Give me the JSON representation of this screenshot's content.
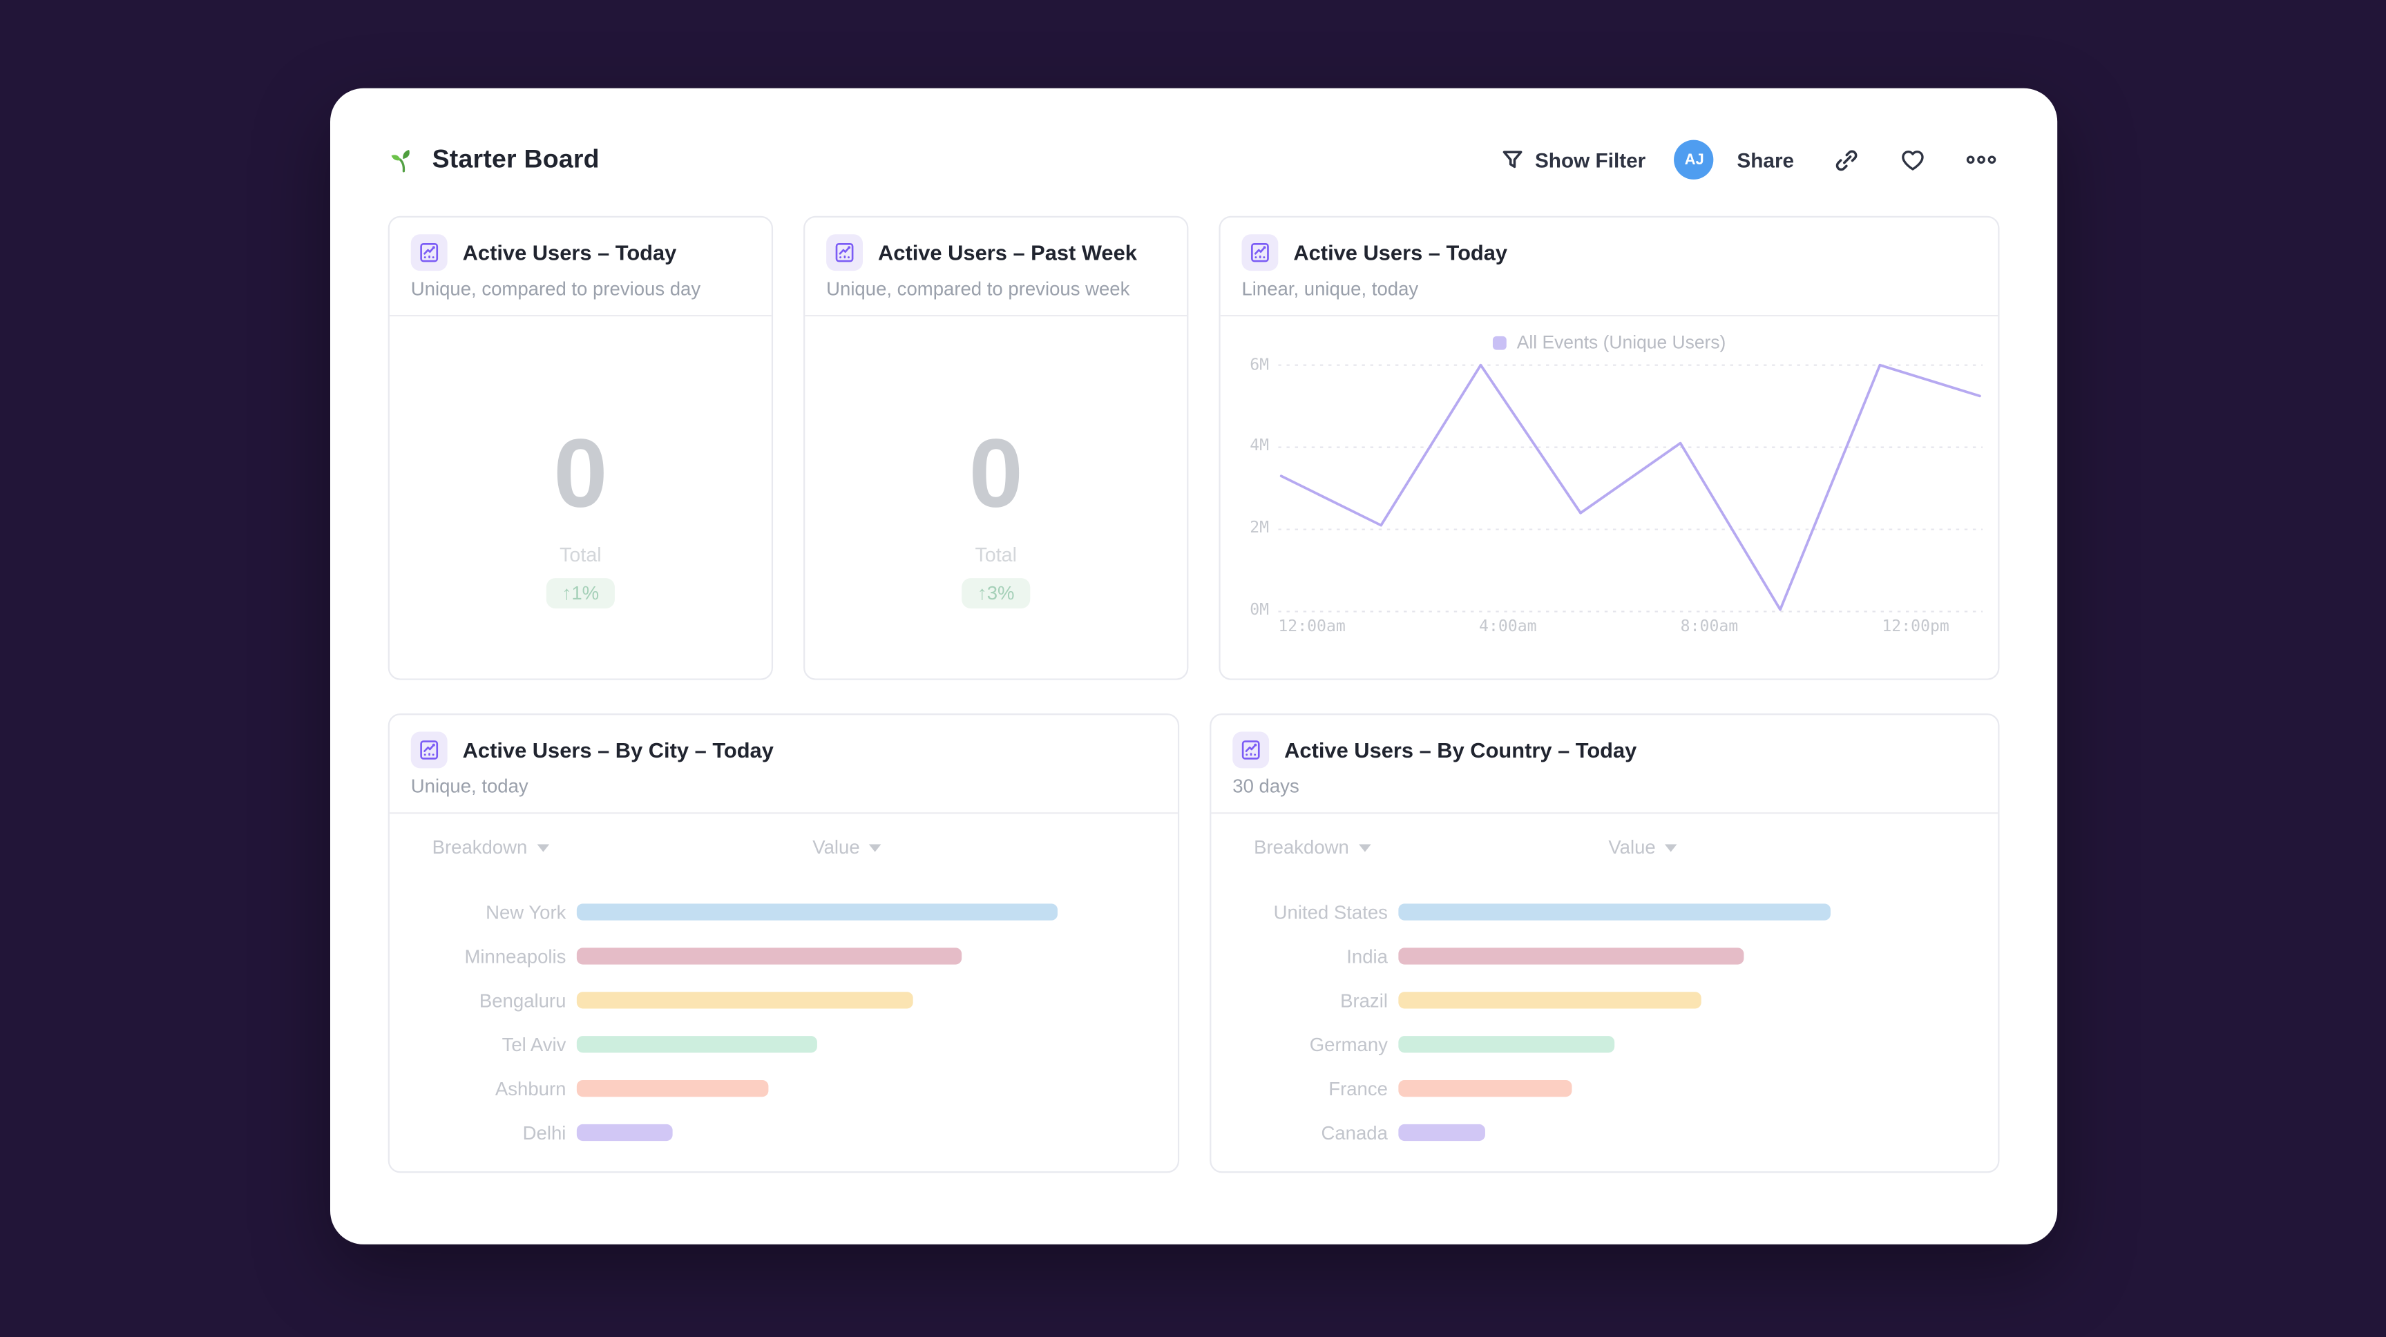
{
  "colors": {
    "page_background": "#221538",
    "card_background": "#ffffff",
    "avatar_blue": "#4f9df0",
    "accent_purple": "#7b5cf5",
    "line_series": "#b6a9f1",
    "legend_swatch": "#c9c0f5",
    "badge_bg": "#edf6ef",
    "badge_text": "#a5d0b8",
    "bar_palette": [
      "#c3def2",
      "#e5bcc7",
      "#fbe4b2",
      "#cdeede",
      "#fccfc2",
      "#d1c7f5"
    ]
  },
  "icons": {
    "board": "seedling",
    "filter": "funnel",
    "panel": "line-chart-frame",
    "link": "chain-link",
    "favorite": "heart-outline",
    "more": "ellipsis-three-dots"
  },
  "header": {
    "title": "Starter Board",
    "show_filter_label": "Show Filter",
    "avatar_initials": "AJ",
    "share_label": "Share"
  },
  "panels": {
    "kpi_today": {
      "title": "Active Users – Today",
      "subtitle": "Unique, compared to previous day",
      "value": "0",
      "value_label": "Total",
      "delta": "↑1%"
    },
    "kpi_week": {
      "title": "Active Users – Past Week",
      "subtitle": "Unique, compared to previous week",
      "value": "0",
      "value_label": "Total",
      "delta": "↑3%"
    },
    "line": {
      "title": "Active Users – Today",
      "subtitle": "Linear, unique, today",
      "legend": "All Events (Unique Users)",
      "yticks": [
        "6M",
        "4M",
        "2M",
        "0M"
      ],
      "xticks": [
        "12:00am",
        "4:00am",
        "8:00am",
        "12:00pm"
      ]
    },
    "city": {
      "title": "Active Users – By City – Today",
      "subtitle": "Unique, today",
      "columns": [
        "Breakdown",
        "Value"
      ],
      "rows": [
        {
          "label": "New York",
          "pct": 100,
          "color": "#c3def2"
        },
        {
          "label": "Minneapolis",
          "pct": 80,
          "color": "#e5bcc7"
        },
        {
          "label": "Bengaluru",
          "pct": 70,
          "color": "#fbe4b2"
        },
        {
          "label": "Tel Aviv",
          "pct": 50,
          "color": "#cdeede"
        },
        {
          "label": "Ashburn",
          "pct": 40,
          "color": "#fccfc2"
        },
        {
          "label": "Delhi",
          "pct": 20,
          "color": "#d1c7f5"
        }
      ]
    },
    "country": {
      "title": "Active Users – By Country – Today",
      "subtitle": "30 days",
      "columns": [
        "Breakdown",
        "Value"
      ],
      "rows": [
        {
          "label": "United States",
          "pct": 100,
          "color": "#c3def2"
        },
        {
          "label": "India",
          "pct": 80,
          "color": "#e5bcc7"
        },
        {
          "label": "Brazil",
          "pct": 70,
          "color": "#fbe4b2"
        },
        {
          "label": "Germany",
          "pct": 50,
          "color": "#cdeede"
        },
        {
          "label": "France",
          "pct": 40,
          "color": "#fccfc2"
        },
        {
          "label": "Canada",
          "pct": 20,
          "color": "#d1c7f5"
        }
      ]
    }
  },
  "chart_data": [
    {
      "type": "line",
      "title": "Active Users – Today",
      "subtitle": "Linear, unique, today",
      "series": [
        {
          "name": "All Events (Unique Users)",
          "x": [
            "12:00am",
            "2:00am",
            "4:00am",
            "6:00am",
            "8:00am",
            "10:00am",
            "12:00pm",
            "2:00pm"
          ],
          "values_millions": [
            3.3,
            2.1,
            6.0,
            2.4,
            4.1,
            0.05,
            6.0,
            5.25
          ]
        }
      ],
      "ylim": [
        0,
        6
      ],
      "ytick_labels": [
        "0M",
        "2M",
        "4M",
        "6M"
      ],
      "xtick_labels": [
        "12:00am",
        "4:00am",
        "8:00am",
        "12:00pm"
      ],
      "grid": "horizontal-dotted",
      "legend_position": "top-center",
      "line_color": "#b6a9f1"
    },
    {
      "type": "bar",
      "orientation": "horizontal",
      "title": "Active Users – By City – Today",
      "categories": [
        "New York",
        "Minneapolis",
        "Bengaluru",
        "Tel Aviv",
        "Ashburn",
        "Delhi"
      ],
      "values_relative_pct": [
        100,
        80,
        70,
        50,
        40,
        20
      ],
      "bar_colors": [
        "#c3def2",
        "#e5bcc7",
        "#fbe4b2",
        "#cdeede",
        "#fccfc2",
        "#d1c7f5"
      ],
      "columns": [
        "Breakdown",
        "Value"
      ]
    },
    {
      "type": "bar",
      "orientation": "horizontal",
      "title": "Active Users – By Country – Today",
      "categories": [
        "United States",
        "India",
        "Brazil",
        "Germany",
        "France",
        "Canada"
      ],
      "values_relative_pct": [
        100,
        80,
        70,
        50,
        40,
        20
      ],
      "bar_colors": [
        "#c3def2",
        "#e5bcc7",
        "#fbe4b2",
        "#cdeede",
        "#fccfc2",
        "#d1c7f5"
      ],
      "columns": [
        "Breakdown",
        "Value"
      ]
    }
  ]
}
